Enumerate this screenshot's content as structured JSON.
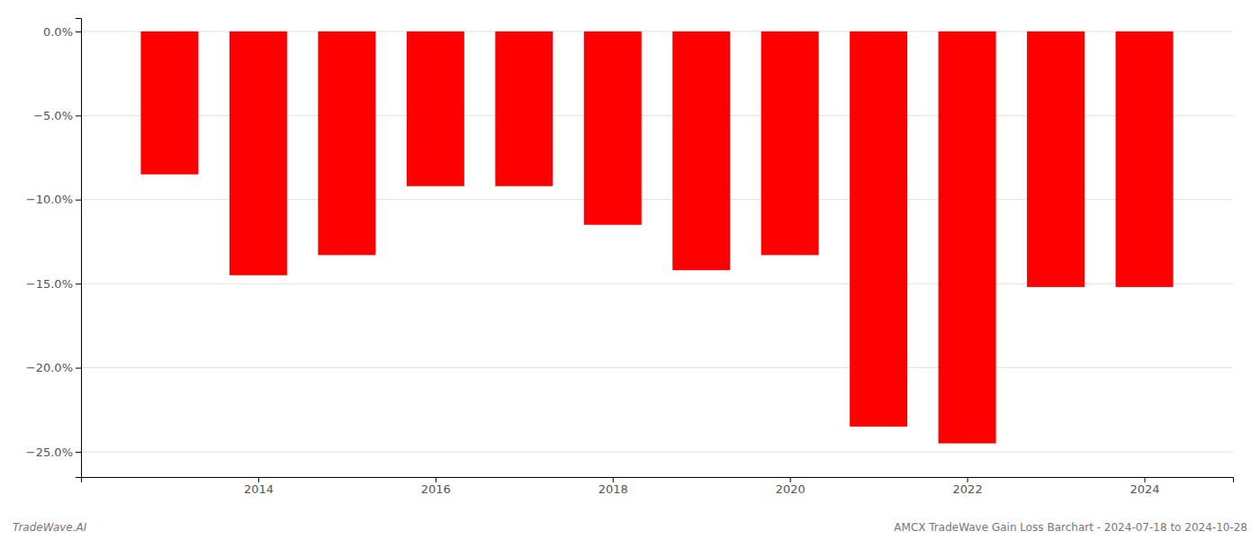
{
  "chart_data": {
    "type": "bar",
    "x": [
      2013,
      2014,
      2015,
      2016,
      2017,
      2018,
      2019,
      2020,
      2021,
      2022,
      2023,
      2024
    ],
    "values": [
      -8.5,
      -14.5,
      -13.3,
      -9.2,
      -9.2,
      -11.5,
      -14.2,
      -13.3,
      -23.5,
      -24.5,
      -15.2,
      -15.2
    ],
    "color": "#ff0000",
    "xlim": [
      2012,
      2025
    ],
    "xticks": [
      2014,
      2016,
      2018,
      2020,
      2022,
      2024
    ],
    "ylim": [
      -26.5,
      0.8
    ],
    "yticks": [
      {
        "value": 0,
        "label": "0.0%"
      },
      {
        "value": -5,
        "label": "−5.0%"
      },
      {
        "value": -10,
        "label": "−10.0%"
      },
      {
        "value": -15,
        "label": "−15.0%"
      },
      {
        "value": -20,
        "label": "−20.0%"
      },
      {
        "value": -25,
        "label": "−25.0%"
      }
    ],
    "grid": true,
    "annotations": [
      "TradeWave.AI",
      "AMCX TradeWave Gain Loss Barchart - 2024-07-18 to 2024-10-28"
    ]
  }
}
